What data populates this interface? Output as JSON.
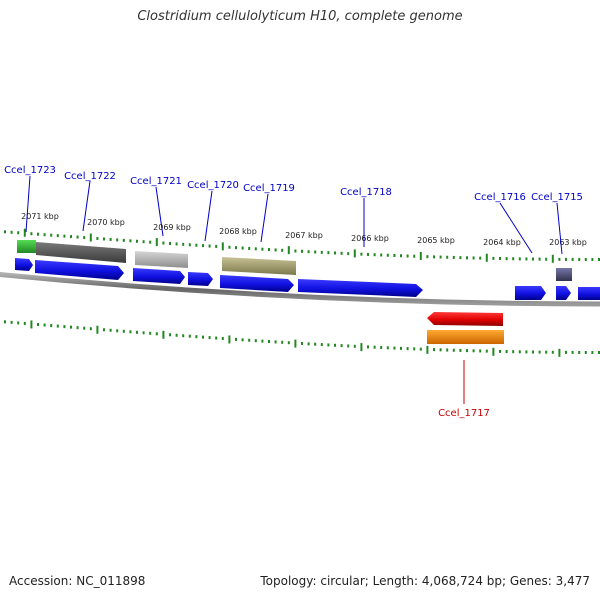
{
  "title": "Clostridium cellulolyticum H10, complete genome",
  "footer": {
    "accession": "Accession: NC_011898",
    "topology": "Topology: circular; Length: 4,068,724 bp; Genes: 3,477"
  },
  "scale": {
    "labels": [
      "2071 kbp",
      "2070 kbp",
      "2069 kbp",
      "2068 kbp",
      "2067 kbp",
      "2066 kbp",
      "2065 kbp",
      "2064 kbp",
      "2063 kbp"
    ]
  },
  "genes": [
    {
      "name": "Ccel_1723",
      "color": "#0000c8"
    },
    {
      "name": "Ccel_1722",
      "color": "#0000c8"
    },
    {
      "name": "Ccel_1721",
      "color": "#0000c8"
    },
    {
      "name": "Ccel_1720",
      "color": "#0000c8"
    },
    {
      "name": "Ccel_1719",
      "color": "#0000c8"
    },
    {
      "name": "Ccel_1718",
      "color": "#0000c8"
    },
    {
      "name": "Ccel_1716",
      "color": "#0000c8"
    },
    {
      "name": "Ccel_1715",
      "color": "#0000c8"
    },
    {
      "name": "Ccel_1717",
      "color": "#c80000"
    }
  ],
  "colors": {
    "cds": "#1010e0",
    "cds_reverse": "#e00000",
    "feature_green": "#33bb33",
    "feature_darkgray": "#5f5f5f",
    "feature_lightgray": "#b8b8b8",
    "feature_olive": "#aaa470",
    "feature_orange": "#ff8800",
    "feature_purple": "#555577",
    "tick": "#228822",
    "backbone": "#888888"
  }
}
